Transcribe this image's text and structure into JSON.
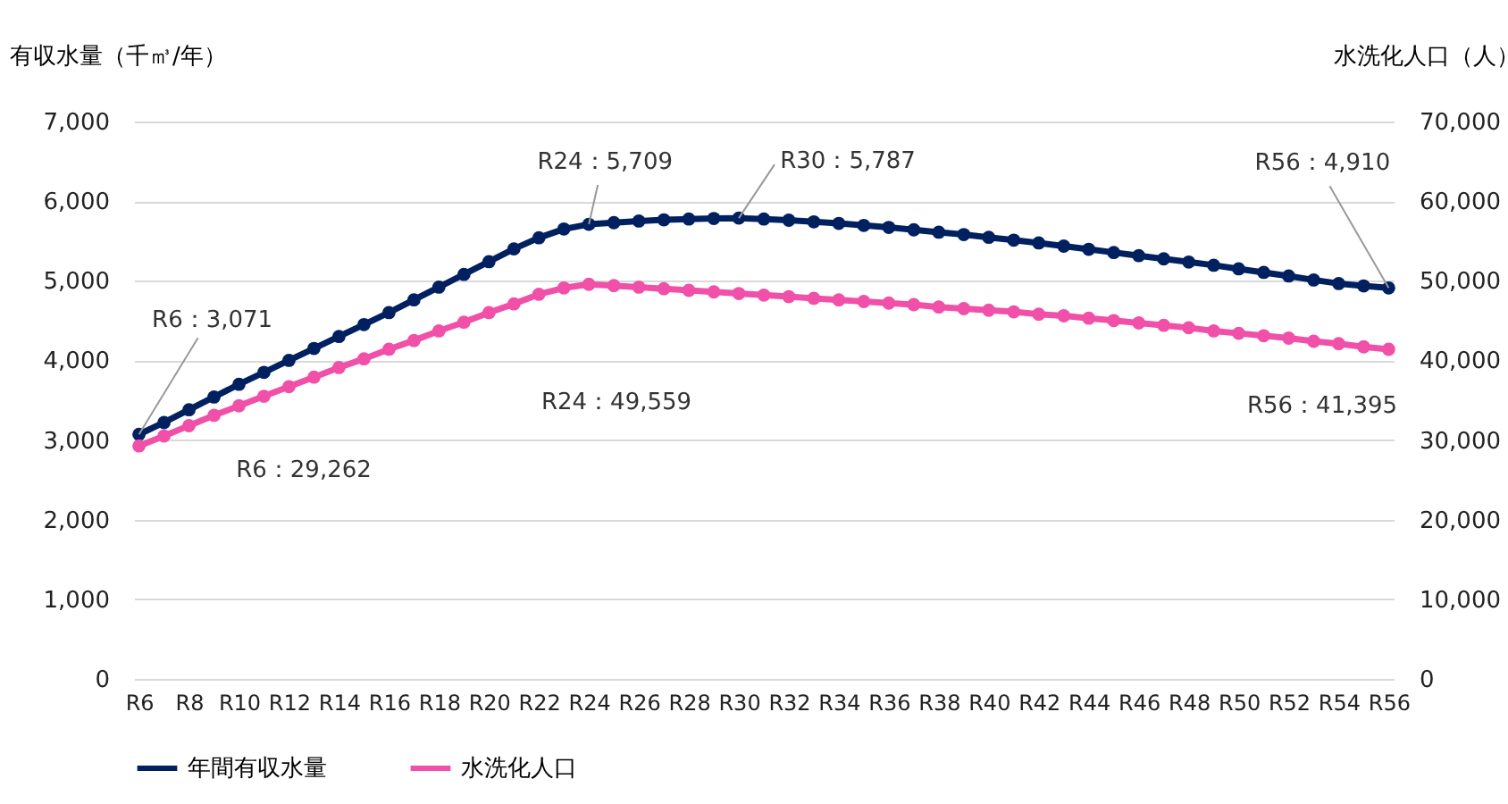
{
  "chart_data": {
    "type": "line",
    "categories": [
      "R6",
      null,
      "R8",
      null,
      "R10",
      null,
      "R12",
      null,
      "R14",
      null,
      "R16",
      null,
      "R18",
      null,
      "R20",
      null,
      "R22",
      null,
      "R24",
      null,
      "R26",
      null,
      "R28",
      null,
      "R30",
      null,
      "R32",
      null,
      "R34",
      null,
      "R36",
      null,
      "R38",
      null,
      "R40",
      null,
      "R42",
      null,
      "R44",
      null,
      "R46",
      null,
      "R48",
      null,
      "R50",
      null,
      "R52",
      null,
      "R54",
      null,
      "R56"
    ],
    "series": [
      {
        "name": "年間有収水量",
        "color": "#002060",
        "values": [
          3071,
          3220,
          3380,
          3540,
          3700,
          3850,
          4000,
          4150,
          4300,
          4450,
          4600,
          4760,
          4920,
          5080,
          5240,
          5400,
          5540,
          5650,
          5709,
          5730,
          5750,
          5765,
          5775,
          5782,
          5787,
          5775,
          5760,
          5740,
          5720,
          5695,
          5670,
          5640,
          5610,
          5580,
          5545,
          5510,
          5475,
          5435,
          5395,
          5355,
          5315,
          5275,
          5235,
          5195,
          5150,
          5105,
          5060,
          5010,
          4965,
          4935,
          4910
        ]
      },
      {
        "name": "水洗化人口",
        "color": "#f050a8",
        "axis": "y2",
        "values": [
          29262,
          30500,
          31800,
          33100,
          34300,
          35500,
          36700,
          37900,
          39100,
          40200,
          41400,
          42500,
          43700,
          44800,
          46000,
          47100,
          48300,
          49100,
          49559,
          49400,
          49200,
          49000,
          48800,
          48600,
          48400,
          48200,
          48000,
          47800,
          47600,
          47400,
          47200,
          47000,
          46700,
          46500,
          46300,
          46100,
          45800,
          45600,
          45300,
          45000,
          44700,
          44400,
          44100,
          43700,
          43400,
          43100,
          42800,
          42400,
          42100,
          41700,
          41395
        ]
      }
    ],
    "ylabel": "有収水量（千㎥/年）",
    "y2label": "水洗化人口（人）",
    "ylim": [
      0,
      7000
    ],
    "yticks": [
      0,
      {
        "value": 1000,
        "label": "1,000"
      },
      {
        "value": 2000,
        "label": "2,000"
      },
      {
        "value": 3000,
        "label": "3,000"
      },
      {
        "value": 4000,
        "label": "4,000"
      },
      {
        "value": 5000,
        "label": "5,000"
      },
      {
        "value": 6000,
        "label": "6,000"
      },
      {
        "value": 7000,
        "label": "7,000"
      }
    ],
    "y2lim": [
      0,
      70000
    ],
    "y2ticks": [
      0,
      {
        "value": 10000,
        "label": "10,000"
      },
      {
        "value": 20000,
        "label": "20,000"
      },
      {
        "value": 30000,
        "label": "30,000"
      },
      {
        "value": 40000,
        "label": "40,000"
      },
      {
        "value": 50000,
        "label": "50,000"
      },
      {
        "value": 60000,
        "label": "60,000"
      },
      {
        "value": 70000,
        "label": "70,000"
      }
    ],
    "annotations": [
      {
        "text": "R6：3,071",
        "x": "R6",
        "y": 3071
      },
      "R6：29,262",
      {
        "text": "R24：5,709",
        "x": "R24",
        "y": 5709
      },
      "R24：49,559",
      {
        "text": "R30：5,787",
        "x": "R30",
        "y": 5787
      },
      {
        "text": "R56：4,910",
        "x": "R56",
        "y": 4910
      },
      "R56：41,395"
    ],
    "grid": "y",
    "legend": "bottom",
    "marker": "circle",
    "line_style": "solid"
  }
}
